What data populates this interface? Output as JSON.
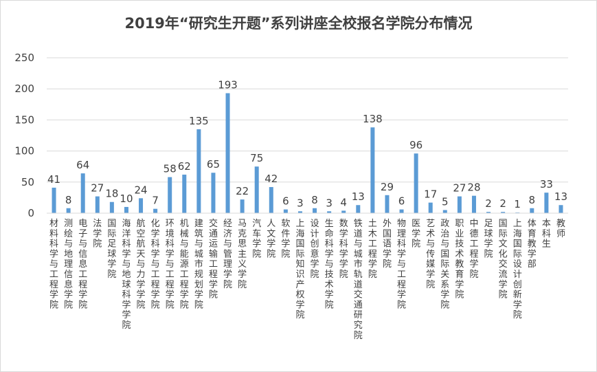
{
  "chart_data": {
    "type": "bar",
    "title": "2019年“研究生开题”系列讲座全校报名学院分布情况",
    "xlabel": "",
    "ylabel": "",
    "ylim": [
      0,
      250
    ],
    "yticks": [
      0,
      50,
      100,
      150,
      200,
      250
    ],
    "grid": true,
    "legend": "none",
    "bar_color": "#5b9bd5",
    "categories": [
      "材料科学与工程学院",
      "测绘与地理信息学院",
      "电子与信息工程学院",
      "法学院",
      "国际足球学院",
      "海洋科学与地球科学学院",
      "航空航天与力学学院",
      "化学科学与工程学院",
      "环境科学与工程学院",
      "机械与能源工程学院",
      "建筑与城市规划学院",
      "交通运输工程学院",
      "经济与管理学院",
      "马克思主义学院",
      "汽车学院",
      "人文学院",
      "软件学院",
      "上海国际知识产权学院",
      "设计创意学院",
      "生命科学与技术学院",
      "数学科学学院",
      "铁道与城市轨道交通研究院",
      "土木工程学院",
      "外国语学院",
      "物理科学与工程学院",
      "医学院",
      "艺术与传媒学院",
      "政治与国际关系学院",
      "职业技术教育学院",
      "中德工程学院",
      "足球学院",
      "国际文化交流学院",
      "上海国际设计创新学院",
      "体育教学部",
      "本科生",
      "教师"
    ],
    "values": [
      41,
      8,
      64,
      27,
      18,
      10,
      24,
      7,
      58,
      62,
      135,
      65,
      193,
      22,
      75,
      42,
      6,
      3,
      8,
      3,
      4,
      13,
      138,
      29,
      6,
      96,
      17,
      5,
      27,
      28,
      2,
      2,
      1,
      8,
      33,
      13
    ]
  }
}
